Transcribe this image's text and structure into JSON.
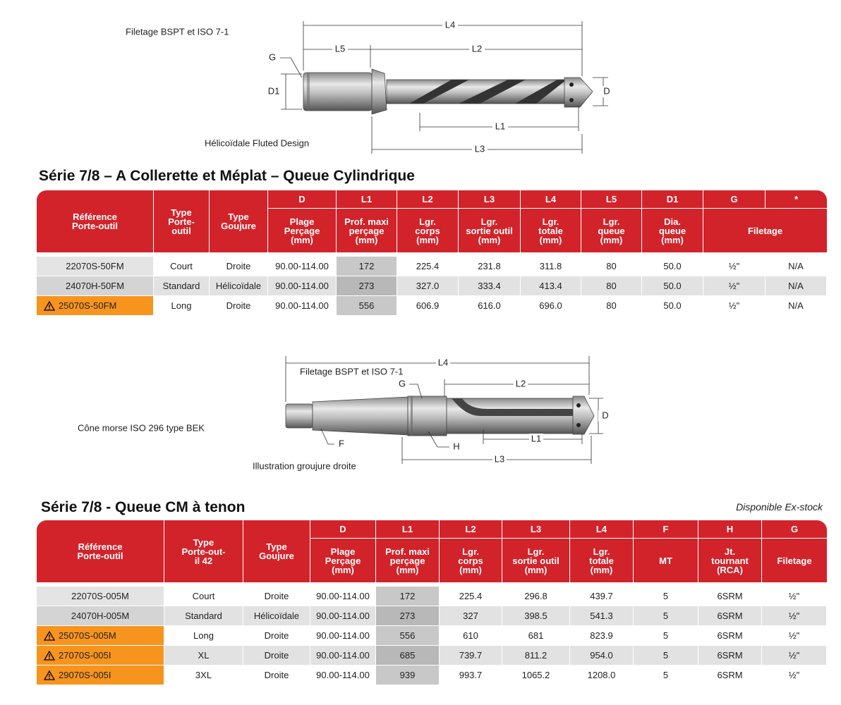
{
  "diagram1": {
    "thread_label": "Filetage BSPT et ISO 7-1",
    "design_label": "Hélicoïdale Fluted Design",
    "dimension_labels": [
      "L4",
      "L5",
      "L2",
      "G",
      "D1",
      "D",
      "L1",
      "L3"
    ]
  },
  "table1": {
    "title": "Série 7/8 – A Collerette et Méplat – Queue Cylindrique",
    "columns_top": [
      "Référence\nPorte-outil",
      "Type\nPorte-\noutil",
      "Type\nGoujure",
      "D",
      "L1",
      "L2",
      "L3",
      "L4",
      "L5",
      "D1",
      "G",
      "*"
    ],
    "columns_sub": [
      "Plage\nPerçage\n(mm)",
      "Prof. maxi\nperçage\n(mm)",
      "Lgr.\ncorps\n(mm)",
      "Lgr.\nsortie outil\n(mm)",
      "Lgr.\ntotale\n(mm)",
      "Lgr.\nqueue\n(mm)",
      "Dia.\nqueue\n(mm)",
      "Filetage"
    ],
    "rows": [
      [
        "22070S-50FM",
        "Court",
        "Droite",
        "90.00-114.00",
        "172",
        "225.4",
        "231.8",
        "311.8",
        "80",
        "50.0",
        "½\"",
        "N/A"
      ],
      [
        "24070H-50FM",
        "Standard",
        "Hélicoïdale",
        "90.00-114.00",
        "273",
        "327.0",
        "333.4",
        "413.4",
        "80",
        "50.0",
        "½\"",
        "N/A"
      ],
      [
        "25070S-50FM",
        "Long",
        "Droite",
        "90.00-114.00",
        "556",
        "606.9",
        "616.0",
        "696.0",
        "80",
        "50.0",
        "½\"",
        "N/A"
      ]
    ],
    "warning": [
      false,
      false,
      true
    ]
  },
  "diagram2": {
    "thread_label": "Filetage BSPT et ISO 7-1",
    "cone_label": "Cône morse ISO 296 type BEK",
    "illustration_label": "Illustration groujure droite",
    "dimension_labels": [
      "L4",
      "G",
      "L2",
      "D",
      "F",
      "H",
      "L1",
      "L3"
    ]
  },
  "table2": {
    "title": "Série 7/8 - Queue CM à tenon",
    "note": "Disponible Ex-stock",
    "columns_top": [
      "Référence\nPorte-outil",
      "Type\nPorte-out-\nil 42",
      "Type\nGoujure",
      "D",
      "L1",
      "L2",
      "L3",
      "L4",
      "F",
      "H",
      "G"
    ],
    "columns_sub": [
      "Plage\nPerçage\n(mm)",
      "Prof. maxi\nperçage\n(mm)",
      "Lgr.\ncorps\n(mm)",
      "Lgr.\nsortie outil\n(mm)",
      "Lgr.\ntotale\n(mm)",
      "MT",
      "Jt.\ntournant\n(RCA)",
      "Filetage"
    ],
    "rows": [
      [
        "22070S-005M",
        "Court",
        "Droite",
        "90.00-114.00",
        "172",
        "225.4",
        "296.8",
        "439.7",
        "5",
        "6SRM",
        "½\""
      ],
      [
        "24070H-005M",
        "Standard",
        "Hélicoïdale",
        "90.00-114.00",
        "273",
        "327",
        "398.5",
        "541.3",
        "5",
        "6SRM",
        "½\""
      ],
      [
        "25070S-005M",
        "Long",
        "Droite",
        "90.00-114.00",
        "556",
        "610",
        "681",
        "823.9",
        "5",
        "6SRM",
        "½\""
      ],
      [
        "27070S-005I",
        "XL",
        "Droite",
        "90.00-114.00",
        "685",
        "739.7",
        "811.2",
        "954.0",
        "5",
        "6SRM",
        "½\""
      ],
      [
        "29070S-005I",
        "3XL",
        "Droite",
        "90.00-114.00",
        "939",
        "993.7",
        "1065.2",
        "1208.0",
        "5",
        "6SRM",
        "½\""
      ]
    ],
    "warning": [
      false,
      false,
      true,
      true,
      true
    ]
  }
}
